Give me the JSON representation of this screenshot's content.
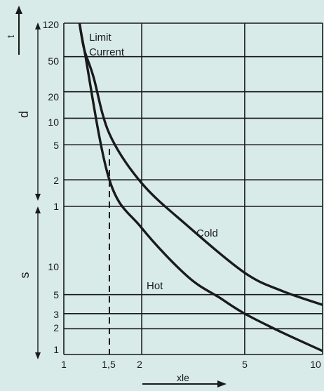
{
  "chart_data": {
    "type": "line",
    "title": "",
    "x_axis": {
      "label": "xle",
      "scale": "log",
      "range": [
        1,
        10
      ],
      "ticks": [
        "1",
        "1,5",
        "2",
        "5",
        "10"
      ],
      "tick_values": [
        1,
        1.5,
        2,
        5,
        10
      ]
    },
    "y_axis": {
      "label": "t",
      "scale": "log",
      "range_seconds": [
        1,
        7200
      ],
      "segments": [
        {
          "unit_label": "d",
          "ticks": [
            "120",
            "50",
            "20",
            "10",
            "5",
            "2",
            "1"
          ]
        },
        {
          "unit_label": "s",
          "ticks": [
            "10",
            "5",
            "3",
            "2",
            "1"
          ]
        }
      ],
      "tick_values_seconds": [
        7200,
        3000,
        1200,
        600,
        300,
        120,
        60,
        10,
        5,
        3,
        2,
        1
      ]
    },
    "grid": true,
    "series": [
      {
        "name": "Cold",
        "x": [
          1.15,
          1.2,
          1.3,
          1.5,
          2,
          3,
          5,
          7,
          10
        ],
        "y_seconds": [
          7200,
          3600,
          1800,
          400,
          110,
          32,
          9,
          5.5,
          3.8
        ]
      },
      {
        "name": "Hot",
        "x": [
          1.15,
          1.2,
          1.5,
          2,
          3,
          4,
          5,
          7,
          10
        ],
        "y_seconds": [
          7200,
          3600,
          120,
          30,
          8.2,
          4.6,
          3.0,
          1.8,
          1.1
        ]
      }
    ],
    "annotations": [
      {
        "text": "Limit"
      },
      {
        "text": "Current"
      },
      {
        "text": "Cold"
      },
      {
        "text": "Hot"
      }
    ],
    "reference_line": {
      "x": 1.5,
      "style": "dashed"
    }
  }
}
